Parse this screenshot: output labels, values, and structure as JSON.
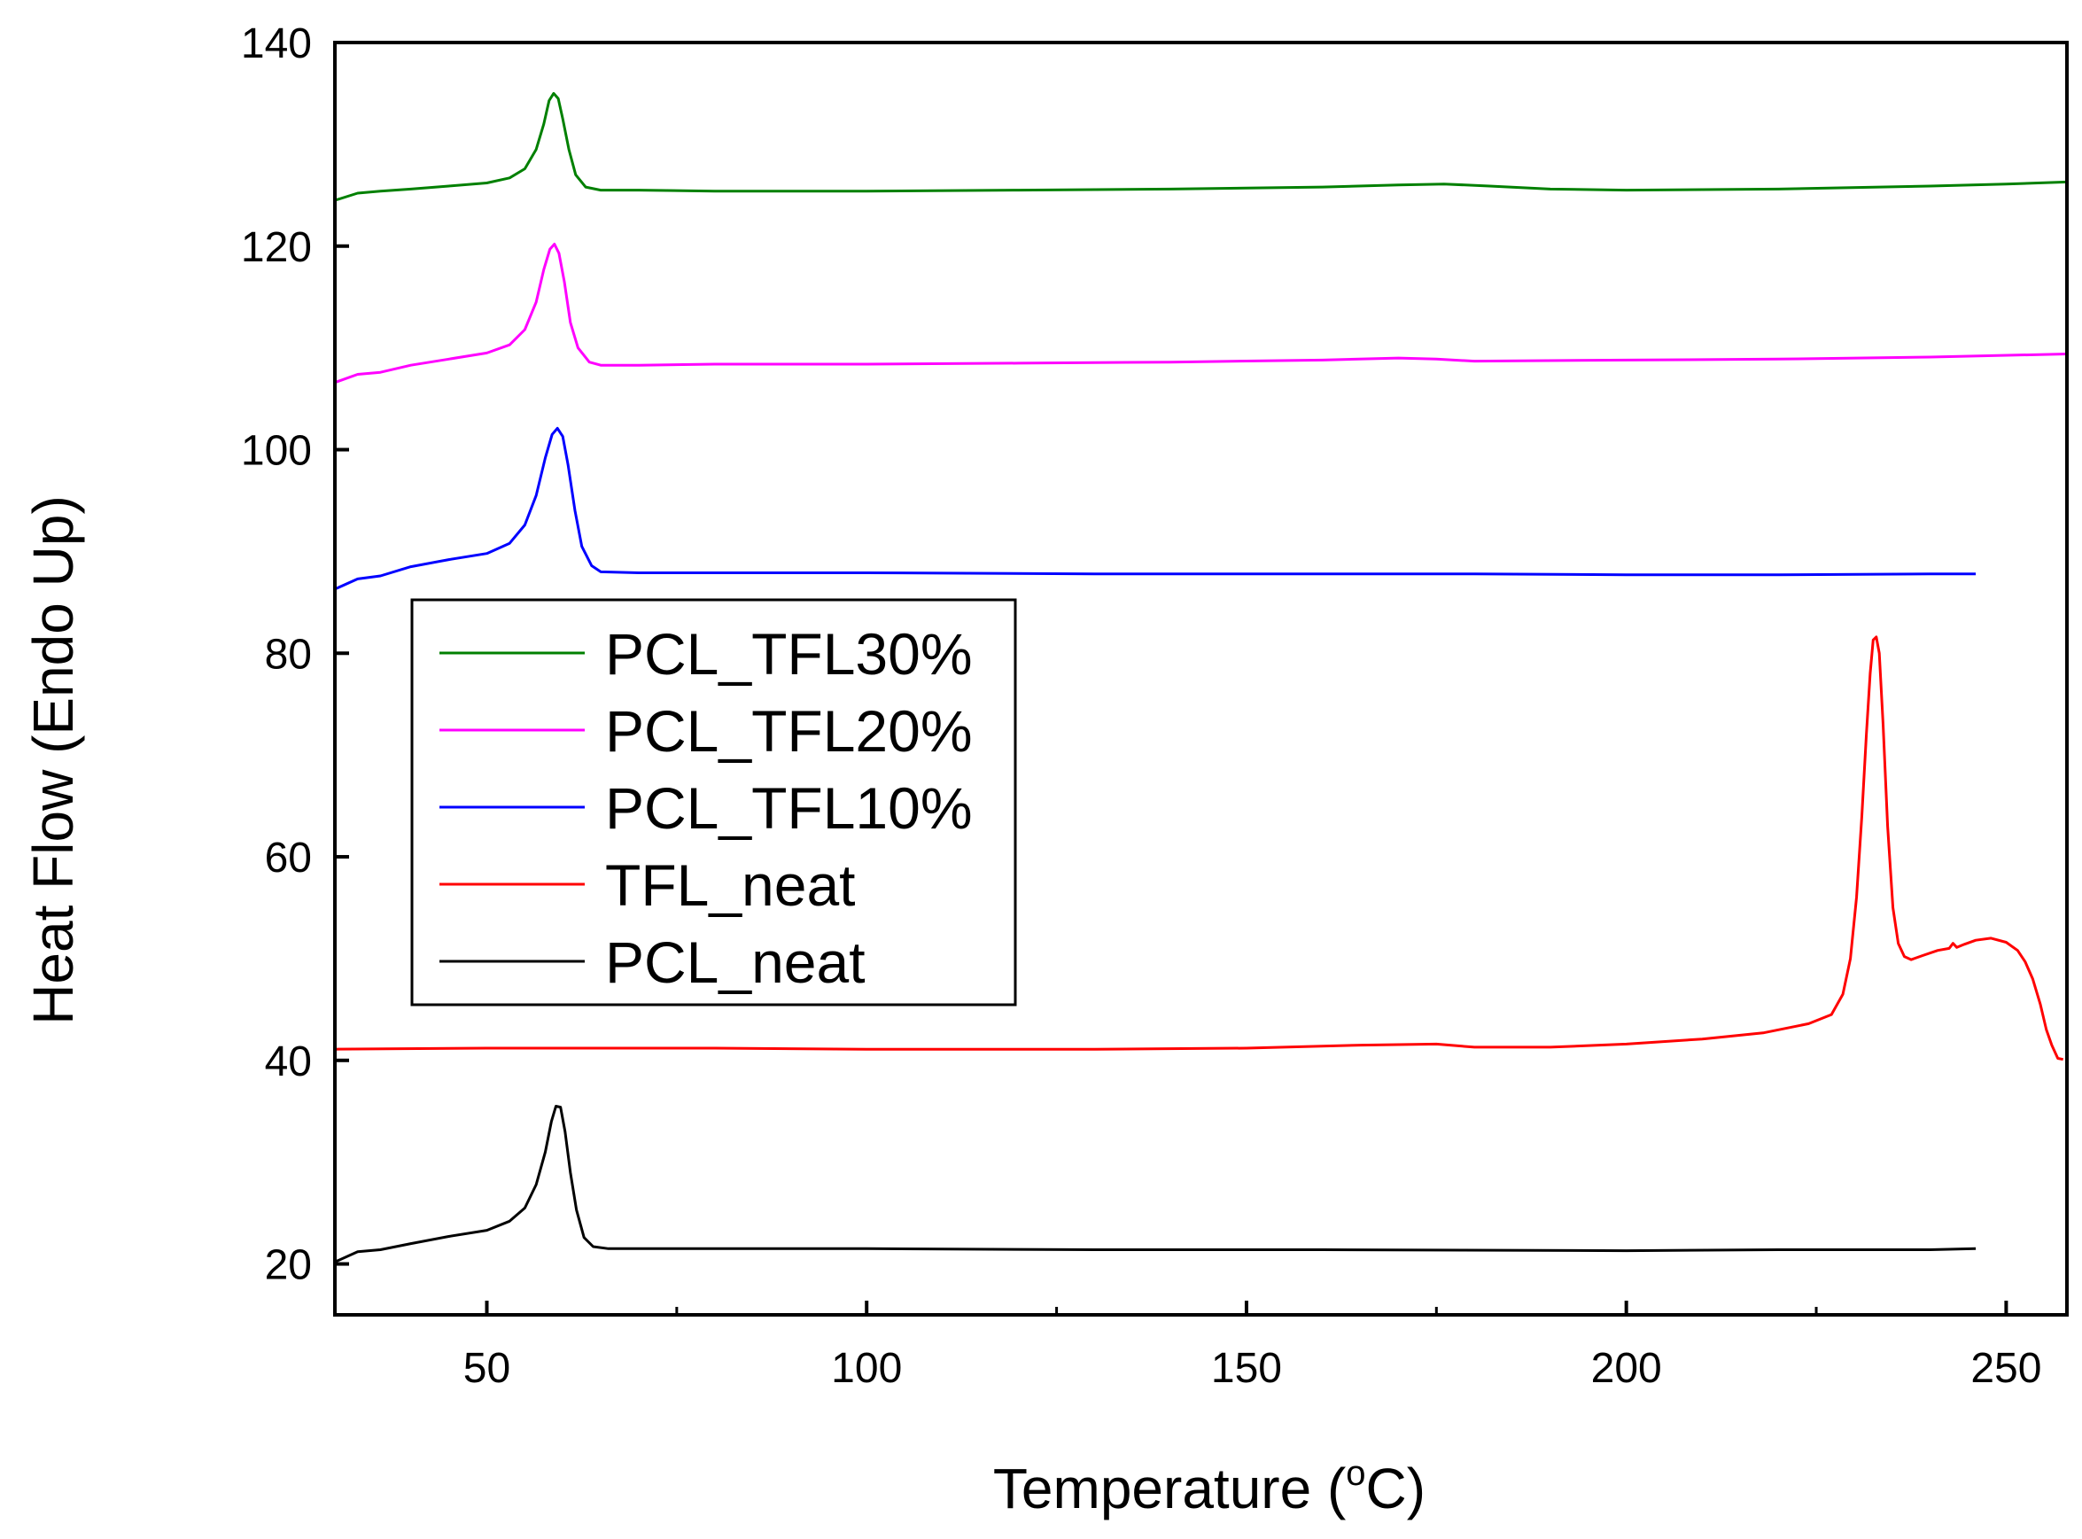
{
  "chart_data": {
    "type": "line",
    "title": "",
    "xlabel_main": "Temperature (",
    "xlabel_sup": "o",
    "xlabel_end": "C)",
    "ylabel": "Heat Flow (Endo Up)",
    "xlim": [
      30,
      258
    ],
    "ylim": [
      15,
      140
    ],
    "xticks": [
      50,
      100,
      150,
      200,
      250
    ],
    "xticks_minor": [
      75,
      125,
      175,
      225
    ],
    "yticks": [
      20,
      40,
      60,
      80,
      100,
      120,
      140
    ],
    "legend_position": "center-left",
    "series": [
      {
        "name": "PCL_TFL30%",
        "color": "#008000",
        "points": [
          [
            30,
            124.5
          ],
          [
            33,
            125.2
          ],
          [
            36,
            125.4
          ],
          [
            40,
            125.6
          ],
          [
            45,
            125.9
          ],
          [
            50,
            126.2
          ],
          [
            53,
            126.7
          ],
          [
            55,
            127.6
          ],
          [
            56.5,
            129.5
          ],
          [
            57.5,
            132
          ],
          [
            58.2,
            134.3
          ],
          [
            58.8,
            135
          ],
          [
            59.4,
            134.5
          ],
          [
            60,
            132.5
          ],
          [
            60.8,
            129.5
          ],
          [
            61.7,
            127
          ],
          [
            63,
            125.8
          ],
          [
            65,
            125.5
          ],
          [
            70,
            125.5
          ],
          [
            80,
            125.4
          ],
          [
            100,
            125.4
          ],
          [
            120,
            125.5
          ],
          [
            140,
            125.6
          ],
          [
            160,
            125.8
          ],
          [
            170,
            126
          ],
          [
            176,
            126.1
          ],
          [
            182,
            125.9
          ],
          [
            190,
            125.6
          ],
          [
            200,
            125.5
          ],
          [
            220,
            125.6
          ],
          [
            240,
            125.9
          ],
          [
            250,
            126.1
          ],
          [
            258,
            126.3
          ]
        ]
      },
      {
        "name": "PCL_TFL20%",
        "color": "#ff00ff",
        "points": [
          [
            30,
            106.6
          ],
          [
            33,
            107.4
          ],
          [
            36,
            107.6
          ],
          [
            40,
            108.3
          ],
          [
            45,
            108.9
          ],
          [
            50,
            109.5
          ],
          [
            53,
            110.3
          ],
          [
            55,
            111.8
          ],
          [
            56.5,
            114.5
          ],
          [
            57.5,
            117.7
          ],
          [
            58.3,
            119.7
          ],
          [
            58.9,
            120.2
          ],
          [
            59.5,
            119.3
          ],
          [
            60.2,
            116.5
          ],
          [
            61,
            112.5
          ],
          [
            62,
            110
          ],
          [
            63.5,
            108.6
          ],
          [
            65,
            108.3
          ],
          [
            70,
            108.3
          ],
          [
            80,
            108.4
          ],
          [
            100,
            108.4
          ],
          [
            120,
            108.5
          ],
          [
            140,
            108.6
          ],
          [
            160,
            108.8
          ],
          [
            170,
            109
          ],
          [
            175,
            108.9
          ],
          [
            180,
            108.7
          ],
          [
            200,
            108.8
          ],
          [
            220,
            108.9
          ],
          [
            240,
            109.1
          ],
          [
            258,
            109.4
          ]
        ]
      },
      {
        "name": "PCL_TFL10%",
        "color": "#0000ff",
        "points": [
          [
            30,
            86.3
          ],
          [
            33,
            87.3
          ],
          [
            36,
            87.6
          ],
          [
            40,
            88.5
          ],
          [
            45,
            89.2
          ],
          [
            50,
            89.8
          ],
          [
            53,
            90.8
          ],
          [
            55,
            92.6
          ],
          [
            56.5,
            95.5
          ],
          [
            57.7,
            99.2
          ],
          [
            58.6,
            101.5
          ],
          [
            59.3,
            102.1
          ],
          [
            60,
            101.3
          ],
          [
            60.7,
            98.5
          ],
          [
            61.6,
            94
          ],
          [
            62.5,
            90.5
          ],
          [
            63.8,
            88.6
          ],
          [
            65,
            88
          ],
          [
            70,
            87.9
          ],
          [
            100,
            87.9
          ],
          [
            130,
            87.8
          ],
          [
            160,
            87.8
          ],
          [
            180,
            87.8
          ],
          [
            200,
            87.7
          ],
          [
            220,
            87.7
          ],
          [
            240,
            87.8
          ],
          [
            246,
            87.8
          ]
        ]
      },
      {
        "name": "TFL_neat",
        "color": "#ff0000",
        "points": [
          [
            30,
            41.1
          ],
          [
            50,
            41.2
          ],
          [
            80,
            41.2
          ],
          [
            100,
            41.1
          ],
          [
            130,
            41.1
          ],
          [
            150,
            41.2
          ],
          [
            165,
            41.5
          ],
          [
            175,
            41.6
          ],
          [
            180,
            41.3
          ],
          [
            190,
            41.3
          ],
          [
            200,
            41.6
          ],
          [
            210,
            42.1
          ],
          [
            218,
            42.7
          ],
          [
            224,
            43.6
          ],
          [
            227,
            44.5
          ],
          [
            228.5,
            46.5
          ],
          [
            229.5,
            50
          ],
          [
            230.3,
            56
          ],
          [
            231,
            64
          ],
          [
            231.6,
            72
          ],
          [
            232.1,
            78
          ],
          [
            232.5,
            81.3
          ],
          [
            232.9,
            81.6
          ],
          [
            233.3,
            80
          ],
          [
            233.8,
            73
          ],
          [
            234.4,
            63
          ],
          [
            235.1,
            55
          ],
          [
            235.8,
            51.5
          ],
          [
            236.6,
            50.2
          ],
          [
            237.5,
            49.9
          ],
          [
            239,
            50.3
          ],
          [
            241,
            50.8
          ],
          [
            242.5,
            51
          ],
          [
            243,
            51.5
          ],
          [
            243.5,
            51.1
          ],
          [
            244.5,
            51.4
          ],
          [
            246,
            51.8
          ],
          [
            248,
            52
          ],
          [
            250,
            51.6
          ],
          [
            251.5,
            50.8
          ],
          [
            252.5,
            49.7
          ],
          [
            253.5,
            48
          ],
          [
            254.5,
            45.5
          ],
          [
            255.3,
            43
          ],
          [
            256,
            41.5
          ],
          [
            256.8,
            40.2
          ],
          [
            257.5,
            40.1
          ]
        ]
      },
      {
        "name": "PCL_neat",
        "color": "#000000",
        "points": [
          [
            30,
            20.2
          ],
          [
            33,
            21.2
          ],
          [
            36,
            21.4
          ],
          [
            40,
            22
          ],
          [
            45,
            22.7
          ],
          [
            50,
            23.3
          ],
          [
            53,
            24.2
          ],
          [
            55,
            25.5
          ],
          [
            56.5,
            27.8
          ],
          [
            57.7,
            31
          ],
          [
            58.5,
            34
          ],
          [
            59.1,
            35.5
          ],
          [
            59.7,
            35.4
          ],
          [
            60.3,
            33
          ],
          [
            61,
            29
          ],
          [
            61.8,
            25.3
          ],
          [
            62.8,
            22.6
          ],
          [
            64,
            21.7
          ],
          [
            66,
            21.5
          ],
          [
            80,
            21.5
          ],
          [
            100,
            21.5
          ],
          [
            130,
            21.4
          ],
          [
            160,
            21.4
          ],
          [
            200,
            21.3
          ],
          [
            220,
            21.4
          ],
          [
            240,
            21.4
          ],
          [
            246,
            21.5
          ]
        ]
      }
    ]
  }
}
